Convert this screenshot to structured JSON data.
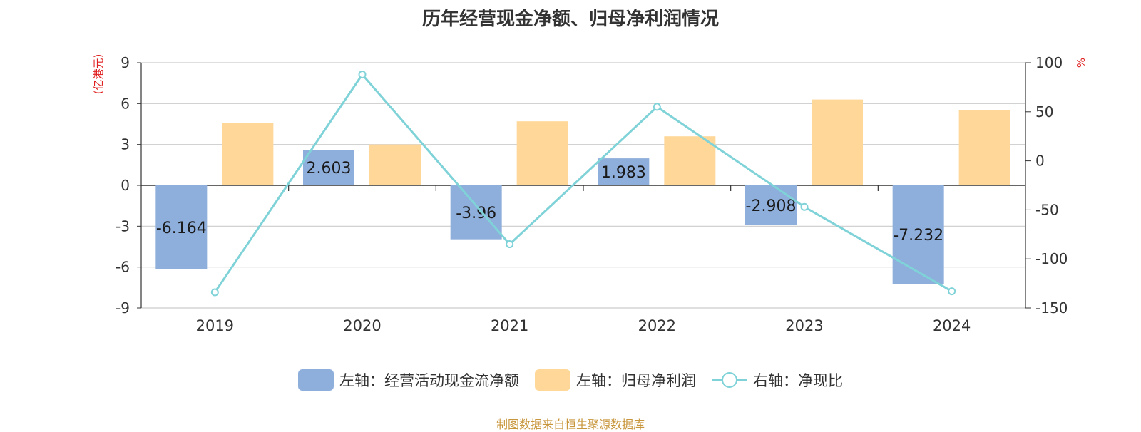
{
  "title": "历年经营现金净额、归母净利润情况",
  "source": "制图数据来自恒生聚源数据库",
  "colors": {
    "cash_flow": "#8eaedb",
    "net_profit": "#ffd899",
    "ratio_line": "#7fd3d8",
    "unit_text": "#e02020",
    "source_text": "#c8963c"
  },
  "legend": [
    {
      "key": "cash_flow",
      "label": "左轴：经营活动现金流净额"
    },
    {
      "key": "net_profit",
      "label": "左轴：归母净利润"
    },
    {
      "key": "ratio_line",
      "label": "右轴：净现比"
    }
  ],
  "chart_data": {
    "type": "bar",
    "title": "历年经营现金净额、归母净利润情况",
    "categories": [
      "2019",
      "2020",
      "2021",
      "2022",
      "2023",
      "2024"
    ],
    "left_axis": {
      "unit": "(亿港元)",
      "ylim": [
        -9,
        9
      ],
      "ticks": [
        9,
        6,
        3,
        0,
        -3,
        -6,
        -9
      ]
    },
    "right_axis": {
      "unit": "%",
      "ylim": [
        -150,
        100
      ],
      "ticks": [
        100,
        50,
        0,
        -50,
        -100,
        -150
      ]
    },
    "series": [
      {
        "name": "经营活动现金流净额",
        "axis": "left",
        "type": "bar",
        "values": [
          -6.164,
          2.603,
          -3.96,
          1.983,
          -2.908,
          -7.232
        ],
        "labels": [
          "-6.164",
          "2.603",
          "-3.96",
          "1.983",
          "-2.908",
          "-7.232"
        ]
      },
      {
        "name": "归母净利润",
        "axis": "left",
        "type": "bar",
        "values": [
          4.6,
          3.0,
          4.7,
          3.6,
          6.3,
          5.5
        ]
      },
      {
        "name": "净现比",
        "axis": "right",
        "type": "line",
        "values": [
          -134,
          88,
          -85,
          55,
          -47,
          -133
        ]
      }
    ],
    "grid": true,
    "legend_position": "bottom"
  }
}
